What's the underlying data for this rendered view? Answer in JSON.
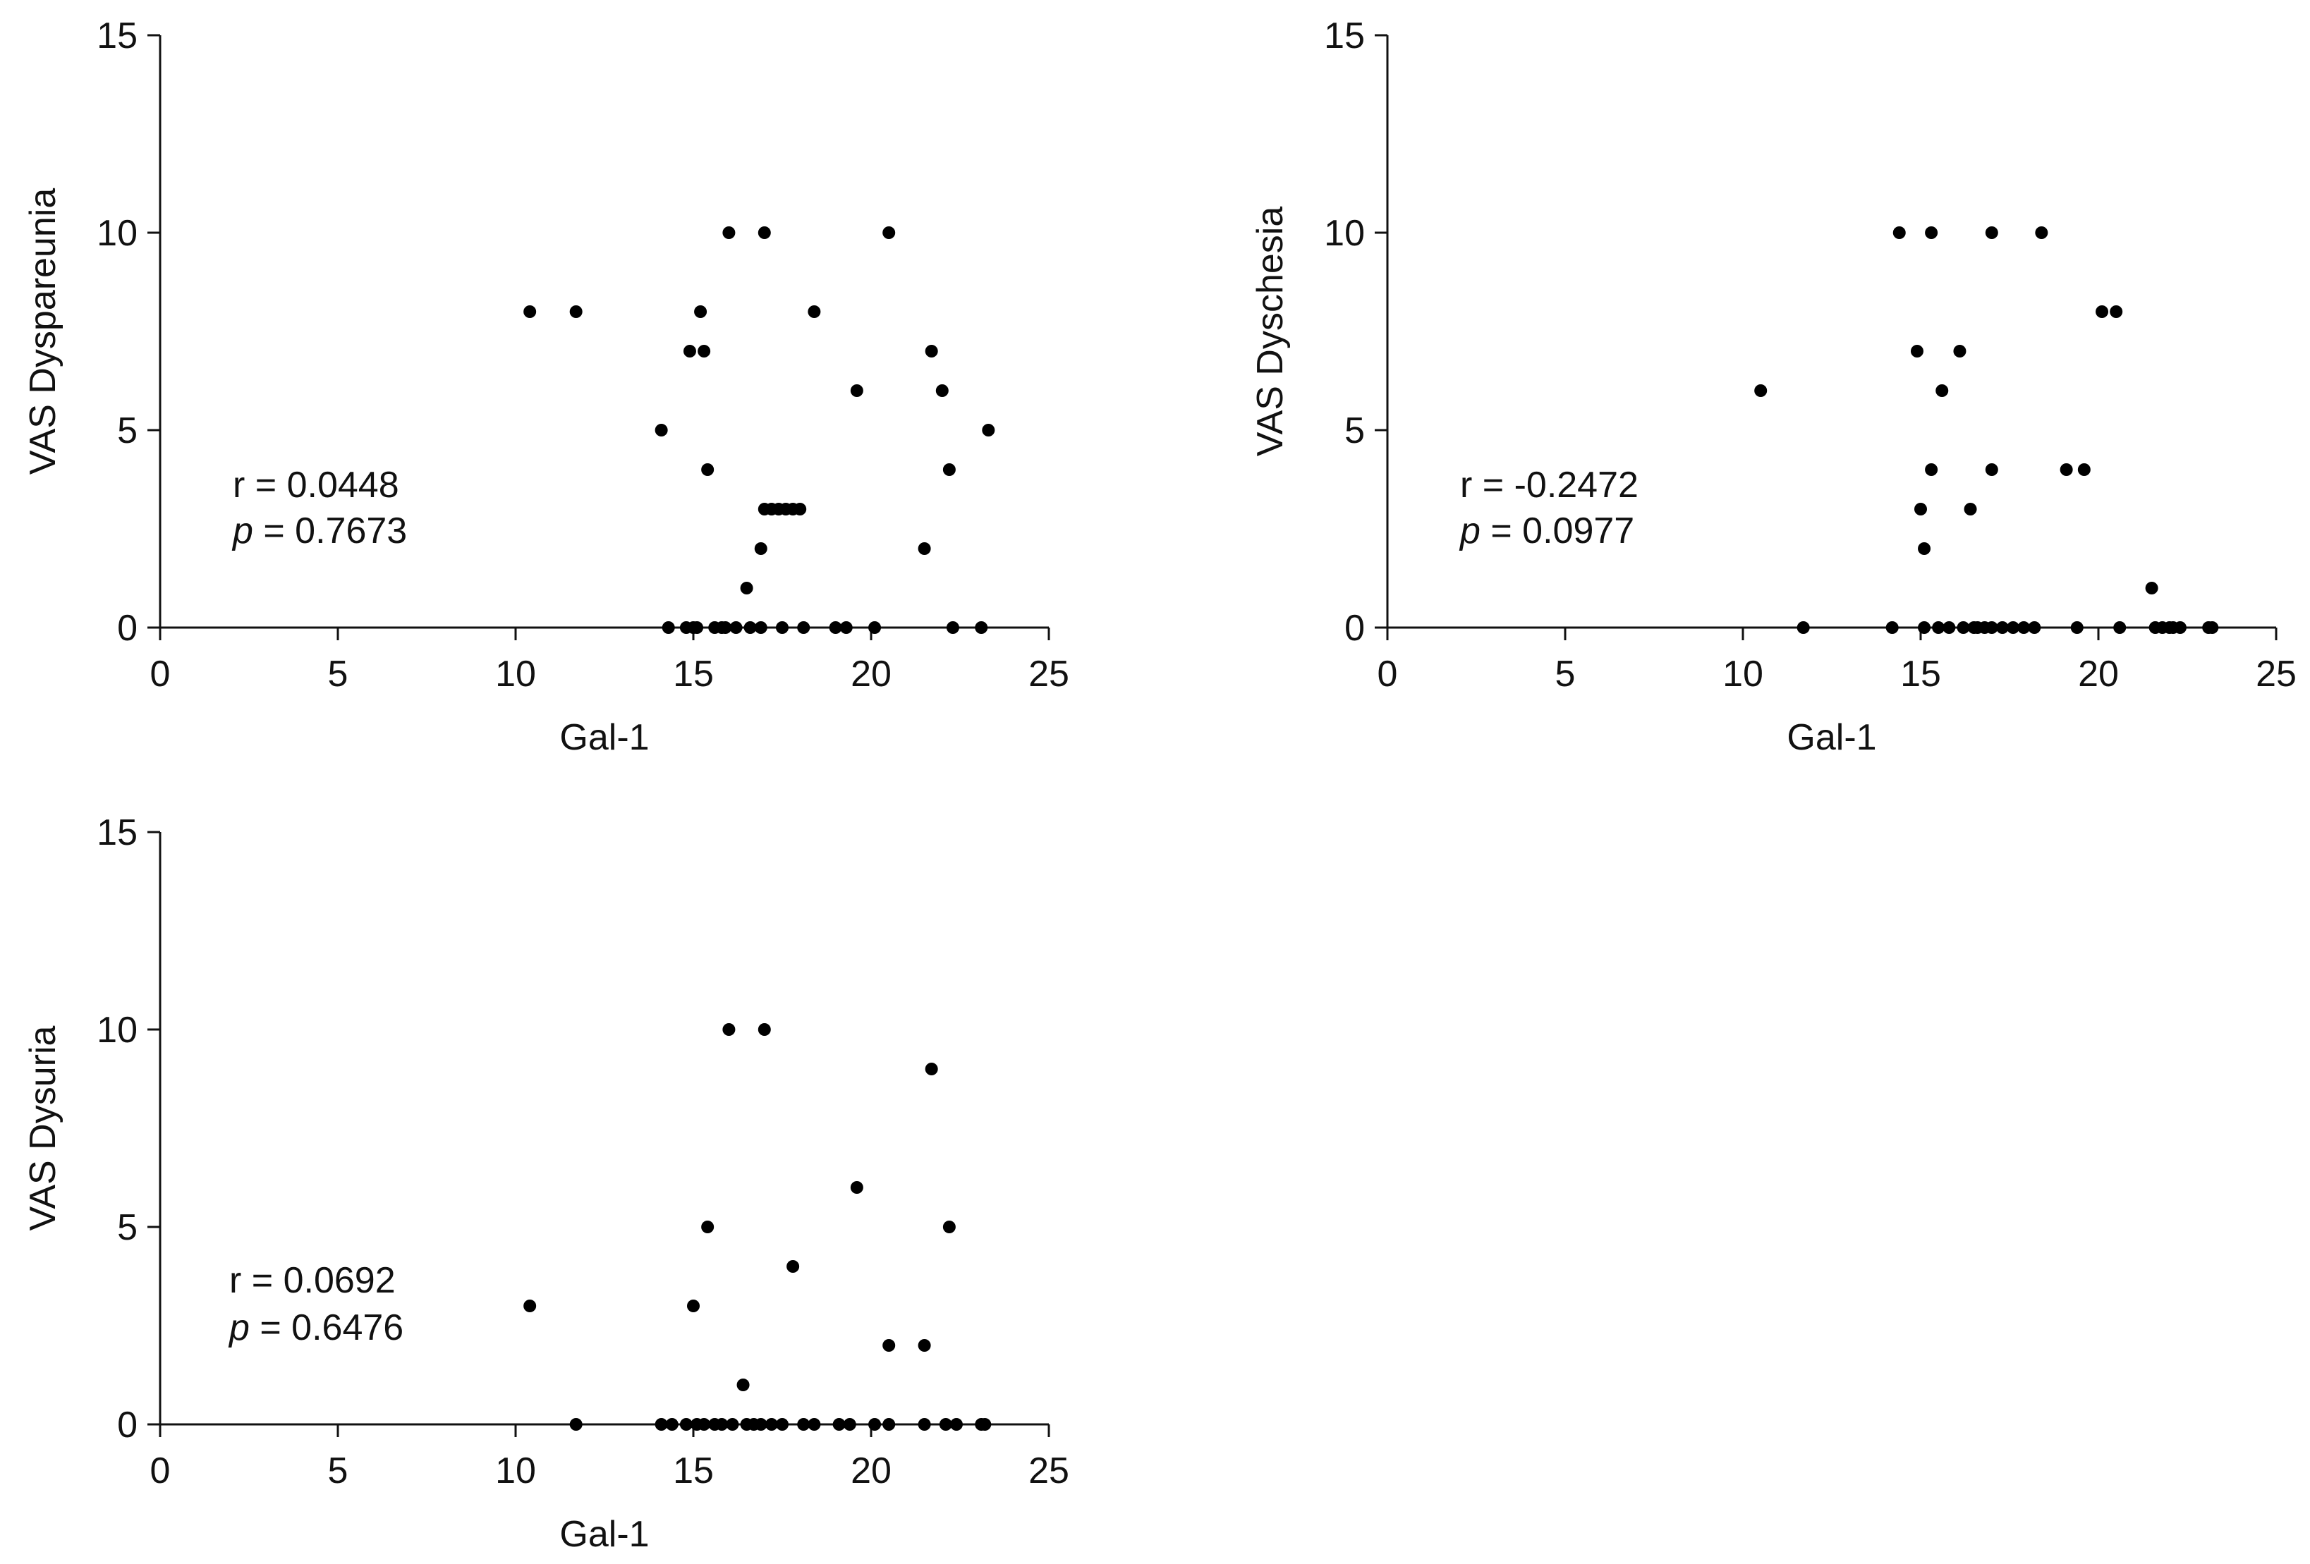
{
  "chart_data": [
    {
      "type": "scatter",
      "title": "",
      "xlabel": "Gal-1",
      "ylabel": "VAS Dyspareunia",
      "xlim": [
        0,
        25
      ],
      "ylim": [
        0,
        15
      ],
      "xticks": [
        0,
        5,
        10,
        15,
        20,
        25
      ],
      "yticks": [
        0,
        5,
        10,
        15
      ],
      "stats": {
        "r_label": "r = 0.0448",
        "p_symbol": "p",
        "p_value": " = 0.7673"
      },
      "points": [
        [
          10.4,
          8
        ],
        [
          11.7,
          8
        ],
        [
          14.1,
          5
        ],
        [
          14.3,
          0
        ],
        [
          14.8,
          0
        ],
        [
          14.9,
          7
        ],
        [
          15.0,
          0
        ],
        [
          15.1,
          0
        ],
        [
          15.2,
          8
        ],
        [
          15.3,
          7
        ],
        [
          15.4,
          4
        ],
        [
          15.6,
          0
        ],
        [
          15.8,
          0
        ],
        [
          15.9,
          0
        ],
        [
          16.0,
          10
        ],
        [
          16.2,
          0
        ],
        [
          16.5,
          1
        ],
        [
          16.6,
          0
        ],
        [
          16.9,
          2
        ],
        [
          16.9,
          0
        ],
        [
          17.0,
          3
        ],
        [
          17.0,
          10
        ],
        [
          17.2,
          3
        ],
        [
          17.4,
          3
        ],
        [
          17.5,
          0
        ],
        [
          17.6,
          3
        ],
        [
          17.8,
          3
        ],
        [
          18.0,
          3
        ],
        [
          18.1,
          0
        ],
        [
          18.4,
          8
        ],
        [
          19.0,
          0
        ],
        [
          19.3,
          0
        ],
        [
          19.6,
          6
        ],
        [
          20.1,
          0
        ],
        [
          20.5,
          10
        ],
        [
          21.5,
          2
        ],
        [
          21.7,
          7
        ],
        [
          22.0,
          6
        ],
        [
          22.2,
          4
        ],
        [
          22.3,
          0
        ],
        [
          23.1,
          0
        ],
        [
          23.3,
          5
        ]
      ]
    },
    {
      "type": "scatter",
      "title": "",
      "xlabel": "Gal-1",
      "ylabel": "VAS Dyschesia",
      "xlim": [
        0,
        25
      ],
      "ylim": [
        0,
        15
      ],
      "xticks": [
        0,
        5,
        10,
        15,
        20,
        25
      ],
      "yticks": [
        0,
        5,
        10,
        15
      ],
      "stats": {
        "r_label": "r = -0.2472",
        "p_symbol": "p",
        "p_value": " = 0.0977"
      },
      "points": [
        [
          10.5,
          6
        ],
        [
          11.7,
          0
        ],
        [
          14.2,
          0
        ],
        [
          14.4,
          10
        ],
        [
          14.9,
          7
        ],
        [
          15.0,
          3
        ],
        [
          15.1,
          2
        ],
        [
          15.1,
          0
        ],
        [
          15.3,
          10
        ],
        [
          15.3,
          4
        ],
        [
          15.5,
          0
        ],
        [
          15.6,
          6
        ],
        [
          15.8,
          0
        ],
        [
          16.1,
          7
        ],
        [
          16.2,
          0
        ],
        [
          16.4,
          3
        ],
        [
          16.5,
          0
        ],
        [
          16.6,
          0
        ],
        [
          16.8,
          0
        ],
        [
          17.0,
          10
        ],
        [
          17.0,
          4
        ],
        [
          17.0,
          0
        ],
        [
          17.3,
          0
        ],
        [
          17.6,
          0
        ],
        [
          17.9,
          0
        ],
        [
          18.2,
          0
        ],
        [
          18.4,
          10
        ],
        [
          19.1,
          4
        ],
        [
          19.4,
          0
        ],
        [
          19.6,
          4
        ],
        [
          20.1,
          8
        ],
        [
          20.5,
          8
        ],
        [
          20.6,
          0
        ],
        [
          21.5,
          1
        ],
        [
          21.6,
          0
        ],
        [
          21.8,
          0
        ],
        [
          22.0,
          0
        ],
        [
          22.1,
          0
        ],
        [
          22.3,
          0
        ],
        [
          23.1,
          0
        ],
        [
          23.2,
          0
        ]
      ]
    },
    {
      "type": "scatter",
      "title": "",
      "xlabel": "Gal-1",
      "ylabel": "VAS Dysuria",
      "xlim": [
        0,
        25
      ],
      "ylim": [
        0,
        15
      ],
      "xticks": [
        0,
        5,
        10,
        15,
        20,
        25
      ],
      "yticks": [
        0,
        5,
        10,
        15
      ],
      "stats": {
        "r_label": "r = 0.0692",
        "p_symbol": "p",
        "p_value": " = 0.6476"
      },
      "points": [
        [
          10.4,
          3
        ],
        [
          11.7,
          0
        ],
        [
          14.1,
          0
        ],
        [
          14.4,
          0
        ],
        [
          14.8,
          0
        ],
        [
          15.0,
          3
        ],
        [
          15.1,
          0
        ],
        [
          15.3,
          0
        ],
        [
          15.4,
          5
        ],
        [
          15.6,
          0
        ],
        [
          15.8,
          0
        ],
        [
          16.0,
          10
        ],
        [
          16.1,
          0
        ],
        [
          16.4,
          1
        ],
        [
          16.5,
          0
        ],
        [
          16.7,
          0
        ],
        [
          16.9,
          0
        ],
        [
          17.0,
          10
        ],
        [
          17.2,
          0
        ],
        [
          17.5,
          0
        ],
        [
          17.8,
          4
        ],
        [
          18.1,
          0
        ],
        [
          18.4,
          0
        ],
        [
          19.1,
          0
        ],
        [
          19.4,
          0
        ],
        [
          19.6,
          6
        ],
        [
          20.1,
          0
        ],
        [
          20.5,
          2
        ],
        [
          20.5,
          0
        ],
        [
          21.5,
          2
        ],
        [
          21.5,
          0
        ],
        [
          21.7,
          9
        ],
        [
          22.1,
          0
        ],
        [
          22.2,
          5
        ],
        [
          22.4,
          0
        ],
        [
          23.1,
          0
        ],
        [
          23.2,
          0
        ]
      ]
    }
  ]
}
